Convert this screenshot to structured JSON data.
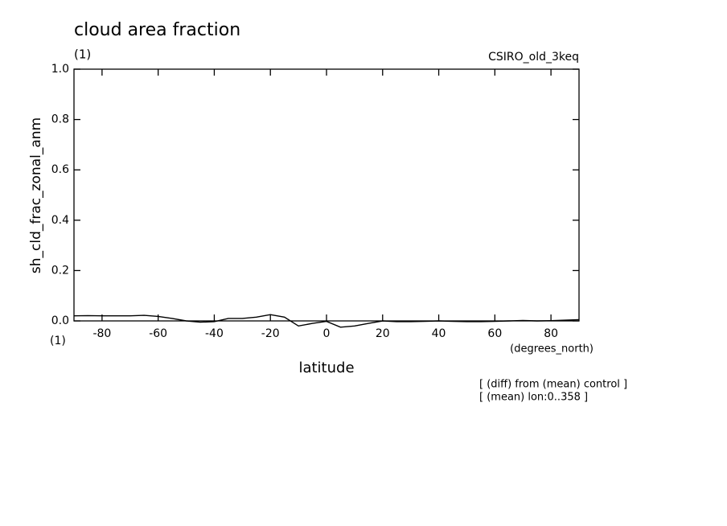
{
  "chart_data": {
    "type": "line",
    "title": "cloud area fraction",
    "subtitle": "(1)",
    "model": "CSIRO_old_3keq",
    "y_label": "sh_cld_frac_zonal_anm",
    "y_units": "(1)",
    "x_label": "latitude",
    "x_units": "(degrees_north)",
    "notes": [
      "[ (diff) from (mean) control ]",
      "[ (mean) lon:0..358 ]"
    ],
    "x": [
      -90,
      -85,
      -80,
      -75,
      -70,
      -65,
      -60,
      -55,
      -50,
      -45,
      -40,
      -35,
      -30,
      -25,
      -20,
      -15,
      -10,
      -5,
      0,
      5,
      10,
      15,
      20,
      25,
      30,
      35,
      40,
      45,
      50,
      55,
      60,
      65,
      70,
      75,
      80,
      85,
      90
    ],
    "series": [
      {
        "name": "sh_cld_frac_zonal_anm",
        "color": "#000000",
        "values": [
          0.02,
          0.021,
          0.02,
          0.02,
          0.02,
          0.022,
          0.018,
          0.01,
          0.0,
          -0.005,
          -0.003,
          0.01,
          0.01,
          0.015,
          0.025,
          0.015,
          -0.02,
          -0.01,
          -0.002,
          -0.025,
          -0.02,
          -0.01,
          0.0,
          -0.003,
          -0.003,
          -0.002,
          0.0,
          -0.002,
          -0.003,
          -0.003,
          -0.002,
          0.0,
          0.002,
          0.0,
          0.001,
          0.003,
          0.005
        ]
      }
    ],
    "xlim": [
      -90,
      90
    ],
    "ylim": [
      0,
      1
    ],
    "xticks": [
      -80,
      -60,
      -40,
      -20,
      0,
      20,
      40,
      60,
      80
    ],
    "yticks": [
      {
        "value": 0,
        "label": "0.0"
      },
      0.2,
      0.4,
      0.6,
      0.8,
      {
        "value": 1,
        "label": "1.0"
      }
    ]
  }
}
